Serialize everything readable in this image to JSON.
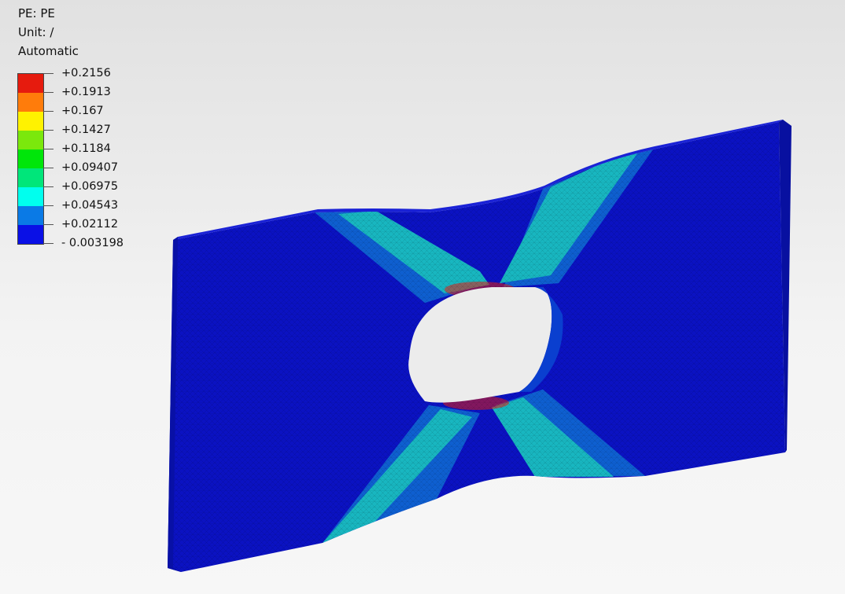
{
  "legend": {
    "title": "PE: PE",
    "unit": "Unit: /",
    "mode": "Automatic",
    "colors": [
      "#e61b0e",
      "#ff7c0b",
      "#fff200",
      "#7be80c",
      "#00e60a",
      "#00e67a",
      "#00ffee",
      "#0a7ae6",
      "#0a10e6"
    ],
    "labels": [
      "+0.2156",
      "+0.1913",
      "+0.167",
      "+0.1427",
      "+0.1184",
      "+0.09407",
      "+0.06975",
      "+0.04543",
      "+0.02112",
      "- 0.003198"
    ]
  },
  "viewport": {
    "plate_color": "#0b12c2",
    "band_outer_color": "#0e5fd0",
    "band_inner_color": "#18b6c0",
    "hotspot_color": "#e61b0e"
  }
}
